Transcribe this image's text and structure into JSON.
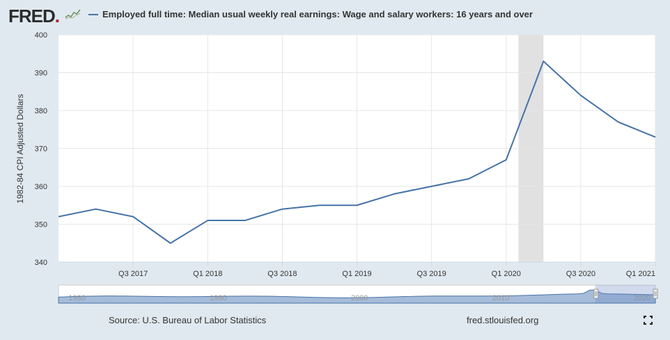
{
  "header": {
    "logo_text": "FRED",
    "logo_mark": "."
  },
  "legend": {
    "series_name": "Employed full time: Median usual weekly real earnings: Wage and salary workers: 16 years and over"
  },
  "chart_data": {
    "type": "line",
    "ylabel": "1982-84 CPI Adjusted Dollars",
    "ylim": [
      340,
      400
    ],
    "yticks": [
      340,
      350,
      360,
      370,
      380,
      390,
      400
    ],
    "x_range": [
      "2017 Q1",
      "2021 Q1"
    ],
    "xtick_labels": [
      "Q3 2017",
      "Q1 2018",
      "Q3 2018",
      "Q1 2019",
      "Q3 2019",
      "Q1 2020",
      "Q3 2020",
      "Q1 2021"
    ],
    "grid": true,
    "series": [
      {
        "name": "Employed full time: Median usual weekly real earnings: Wage and salary workers: 16 years and over",
        "color": "#4572a7",
        "x": [
          "2017 Q1",
          "2017 Q2",
          "2017 Q3",
          "2017 Q4",
          "2018 Q1",
          "2018 Q2",
          "2018 Q3",
          "2018 Q4",
          "2019 Q1",
          "2019 Q2",
          "2019 Q3",
          "2019 Q4",
          "2020 Q1",
          "2020 Q2",
          "2020 Q3",
          "2020 Q4",
          "2021 Q1"
        ],
        "values": [
          352,
          354,
          352,
          345,
          351,
          351,
          354,
          355,
          355,
          358,
          360,
          362,
          367,
          393,
          384,
          377,
          373
        ]
      }
    ],
    "recession_shading": [
      "2020 Q1 (partial)",
      "2020 Q2"
    ],
    "navigator": {
      "labels": [
        "1980",
        "1990",
        "2000",
        "2010",
        "2020"
      ],
      "selected_range": [
        "2017 Q1",
        "2021 Q1"
      ]
    }
  },
  "colors": {
    "line": "#4572a7",
    "plot_background": "#ffffff",
    "page_background": "#e1e9f0",
    "recession": "#e1e1e1",
    "navigator_fill": "#a6bcd9"
  },
  "footer": {
    "source": "Source: U.S. Bureau of Labor Statistics",
    "url": "fred.stlouisfed.org"
  }
}
